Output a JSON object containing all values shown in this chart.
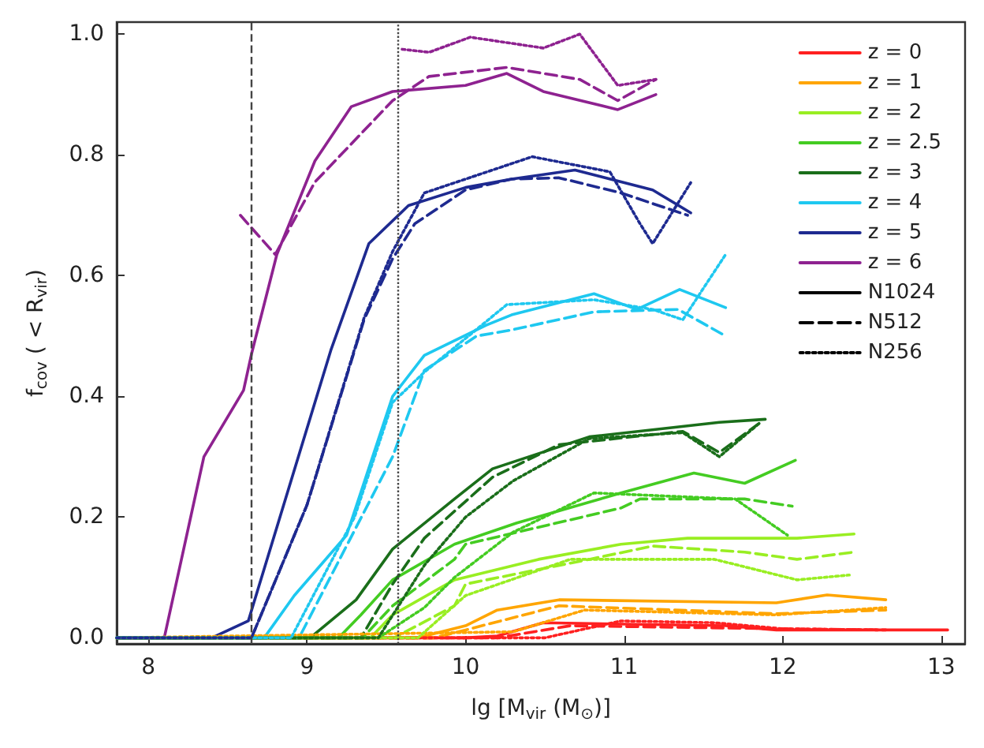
{
  "chart_data": {
    "type": "line",
    "xlabel": "lg [M$_{vir}$ (M$_{⊙}$)]",
    "ylabel": "f$_{cov}$ ( < R$_{vir}$)",
    "xlim": [
      7.8,
      13.15
    ],
    "ylim": [
      -0.01,
      1.02
    ],
    "xticks": [
      8,
      9,
      10,
      11,
      12,
      13
    ],
    "yticks": [
      {
        "value": 0,
        "label": "0.0"
      },
      {
        "value": 0.2,
        "label": "0.2"
      },
      {
        "value": 0.4,
        "label": "0.4"
      },
      {
        "value": 0.6,
        "label": "0.6"
      },
      {
        "value": 0.8,
        "label": "0.8"
      },
      {
        "value": 1,
        "label": "1.0"
      }
    ],
    "grid": false,
    "legend": "top right",
    "marker": "none",
    "ref_lines": [
      {
        "axis": "x",
        "value": 8.65,
        "color": "#444444",
        "line_style": "dashed"
      },
      {
        "axis": "x",
        "value": 9.57,
        "color": "#444444",
        "line_style": "dotted"
      }
    ],
    "series": [
      {
        "name": "z = 0",
        "color": "#ff2020",
        "line_style": "solid",
        "x": [
          7.8,
          10.0,
          10.2,
          10.49,
          11.64,
          11.96,
          13.04
        ],
        "values": [
          0,
          0,
          0.003,
          0.025,
          0.02,
          0.013,
          0.013
        ]
      },
      {
        "name": "z = 1",
        "color": "#ffa500",
        "line_style": "solid",
        "x": [
          7.8,
          9.7,
          10.0,
          10.2,
          10.59,
          11.96,
          12.28,
          12.65
        ],
        "values": [
          0,
          0,
          0.02,
          0.046,
          0.063,
          0.058,
          0.071,
          0.063
        ]
      },
      {
        "name": "z = 2",
        "color": "#99ee22",
        "line_style": "solid",
        "x": [
          7.8,
          9.4,
          9.54,
          9.93,
          10.46,
          10.98,
          11.4,
          12.09,
          12.45
        ],
        "values": [
          0,
          0,
          0.038,
          0.096,
          0.13,
          0.155,
          0.165,
          0.165,
          0.172
        ]
      },
      {
        "name": "z = 2.5",
        "color": "#44cc22",
        "line_style": "solid",
        "x": [
          7.8,
          9.2,
          9.34,
          9.54,
          9.93,
          10.32,
          10.98,
          11.44,
          11.76,
          12.08
        ],
        "values": [
          0,
          0,
          0.038,
          0.096,
          0.155,
          0.19,
          0.24,
          0.273,
          0.256,
          0.294
        ]
      },
      {
        "name": "z = 3",
        "color": "#1a6e1a",
        "line_style": "solid",
        "x": [
          7.8,
          9.02,
          9.31,
          9.54,
          9.93,
          10.17,
          10.78,
          11.6,
          11.89
        ],
        "values": [
          0,
          0,
          0.063,
          0.147,
          0.23,
          0.28,
          0.333,
          0.357,
          0.362
        ]
      },
      {
        "name": "z = 4",
        "color": "#1ec8f0",
        "line_style": "solid",
        "x": [
          7.8,
          8.73,
          8.92,
          9.25,
          9.54,
          9.74,
          10.13,
          10.29,
          10.81,
          11.08,
          11.35,
          11.64
        ],
        "values": [
          0,
          0,
          0.07,
          0.17,
          0.4,
          0.468,
          0.518,
          0.535,
          0.57,
          0.544,
          0.577,
          0.547
        ]
      },
      {
        "name": "z = 5",
        "color": "#1e2a90",
        "line_style": "solid",
        "x": [
          7.8,
          8.4,
          8.63,
          9.15,
          9.39,
          9.64,
          10.0,
          10.29,
          10.69,
          11.18,
          11.42
        ],
        "values": [
          0,
          0,
          0.028,
          0.476,
          0.653,
          0.716,
          0.746,
          0.76,
          0.775,
          0.742,
          0.704
        ]
      },
      {
        "name": "z = 6",
        "color": "#8e2290",
        "line_style": "solid",
        "x": [
          7.8,
          8.1,
          8.35,
          8.6,
          8.65,
          8.81,
          9.05,
          9.28,
          9.54,
          10.0,
          10.26,
          10.49,
          10.96,
          11.2
        ],
        "values": [
          0,
          0,
          0.3,
          0.41,
          0.47,
          0.635,
          0.79,
          0.88,
          0.905,
          0.915,
          0.935,
          0.905,
          0.875,
          0.9
        ]
      },
      {
        "color": "#ff2020",
        "line_style": "dashed",
        "x": [
          7.8,
          10.2,
          10.66,
          11.96,
          12.65
        ],
        "values": [
          0,
          0,
          0.02,
          0.015,
          0.013
        ]
      },
      {
        "color": "#ffa500",
        "line_style": "dashed",
        "x": [
          7.8,
          9.8,
          10.0,
          10.59,
          11.96,
          12.65
        ],
        "values": [
          0,
          0,
          0.013,
          0.053,
          0.04,
          0.046
        ]
      },
      {
        "color": "#99ee22",
        "line_style": "dashed",
        "x": [
          7.8,
          9.55,
          9.93,
          10.0,
          10.78,
          11.18,
          11.76,
          12.09,
          12.45
        ],
        "values": [
          0,
          0,
          0.053,
          0.089,
          0.13,
          0.152,
          0.142,
          0.13,
          0.142
        ]
      },
      {
        "color": "#44cc22",
        "line_style": "dashed",
        "x": [
          7.8,
          9.35,
          9.54,
          9.93,
          10.0,
          10.98,
          11.1,
          11.76,
          12.06
        ],
        "values": [
          0,
          0,
          0.053,
          0.13,
          0.155,
          0.215,
          0.23,
          0.23,
          0.218
        ]
      },
      {
        "color": "#1a6e1a",
        "line_style": "dashed",
        "x": [
          7.8,
          9.34,
          9.54,
          9.74,
          10.17,
          10.59,
          11.37,
          11.6,
          11.86
        ],
        "values": [
          0,
          0,
          0.089,
          0.165,
          0.266,
          0.32,
          0.342,
          0.307,
          0.357
        ]
      },
      {
        "color": "#1ec8f0",
        "line_style": "dashed",
        "x": [
          7.8,
          8.95,
          9.54,
          9.74,
          10.07,
          10.29,
          10.81,
          11.34,
          11.64
        ],
        "values": [
          0,
          0,
          0.3,
          0.443,
          0.5,
          0.51,
          0.54,
          0.544,
          0.5
        ]
      },
      {
        "color": "#1e2a90",
        "line_style": "dashed",
        "x": [
          7.8,
          8.65,
          9.0,
          9.36,
          9.54,
          9.68,
          10.0,
          10.29,
          10.59,
          10.98,
          11.4
        ],
        "values": [
          0,
          0,
          0.22,
          0.527,
          0.628,
          0.686,
          0.742,
          0.76,
          0.762,
          0.737,
          0.7
        ]
      },
      {
        "color": "#8e2290",
        "line_style": "dashed",
        "x": [
          8.58,
          8.8,
          9.05,
          9.54,
          9.77,
          10.26,
          10.72,
          10.96,
          11.2
        ],
        "values": [
          0.7,
          0.635,
          0.755,
          0.89,
          0.93,
          0.945,
          0.925,
          0.89,
          0.925
        ]
      },
      {
        "color": "#ff2020",
        "line_style": "dotted",
        "x": [
          7.8,
          10.5,
          10.98,
          11.57,
          12.0,
          12.6
        ],
        "values": [
          0,
          0,
          0.028,
          0.025,
          0.015,
          0.013
        ]
      },
      {
        "color": "#ffa500",
        "line_style": "dotted",
        "x": [
          7.8,
          10.3,
          10.75,
          11.96,
          12.65
        ],
        "values": [
          0,
          0.01,
          0.046,
          0.038,
          0.05
        ]
      },
      {
        "color": "#99ee22",
        "line_style": "dotted",
        "x": [
          7.8,
          9.7,
          10.0,
          10.66,
          11.57,
          12.09,
          12.42
        ],
        "values": [
          0,
          0,
          0.07,
          0.13,
          0.13,
          0.096,
          0.104
        ]
      },
      {
        "color": "#44cc22",
        "line_style": "dotted",
        "x": [
          7.8,
          9.45,
          9.74,
          9.93,
          10.3,
          10.81,
          11.7,
          12.03
        ],
        "values": [
          0,
          0,
          0.05,
          0.1,
          0.175,
          0.24,
          0.23,
          0.17
        ]
      },
      {
        "color": "#1a6e1a",
        "line_style": "dotted",
        "x": [
          7.8,
          9.45,
          9.74,
          10.0,
          10.3,
          10.78,
          11.37,
          11.6,
          11.86
        ],
        "values": [
          0,
          0,
          0.12,
          0.2,
          0.26,
          0.33,
          0.34,
          0.3,
          0.357
        ]
      },
      {
        "color": "#1ec8f0",
        "line_style": "dotted",
        "x": [
          7.8,
          8.9,
          9.3,
          9.54,
          9.74,
          10.26,
          10.81,
          11.18,
          11.37,
          11.64
        ],
        "values": [
          0,
          0,
          0.2,
          0.39,
          0.44,
          0.552,
          0.56,
          0.544,
          0.527,
          0.635
        ]
      },
      {
        "color": "#1e2a90",
        "line_style": "dotted",
        "x": [
          7.8,
          8.65,
          9.0,
          9.36,
          9.54,
          9.74,
          10.42,
          10.91,
          11.1,
          11.18,
          11.42
        ],
        "values": [
          0,
          0,
          0.22,
          0.53,
          0.64,
          0.737,
          0.797,
          0.772,
          0.686,
          0.653,
          0.754
        ]
      },
      {
        "color": "#8e2290",
        "line_style": "dotted",
        "x": [
          9.6,
          9.77,
          10.03,
          10.49,
          10.72,
          10.96,
          11.2
        ],
        "values": [
          0.975,
          0.97,
          0.995,
          0.977,
          1.0,
          0.915,
          0.925
        ]
      },
      {
        "name": "N1024",
        "color": "#000000",
        "line_style": "solid"
      },
      {
        "name": "N512",
        "color": "#000000",
        "line_style": "dashed"
      },
      {
        "name": "N256",
        "color": "#000000",
        "line_style": "dotted"
      }
    ]
  }
}
